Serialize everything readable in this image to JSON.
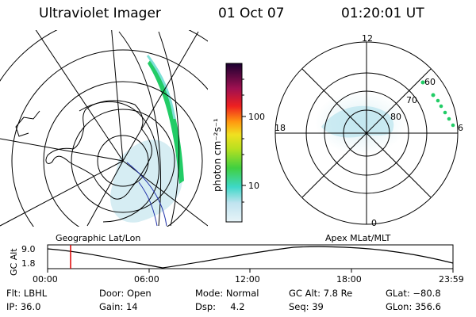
{
  "header": {
    "instrument": "Ultraviolet Imager",
    "date": "01 Oct 07",
    "time": "01:20:01 UT"
  },
  "colorbar": {
    "unit_label": "photon cm⁻²s⁻¹",
    "ticks": [
      "100",
      "10"
    ]
  },
  "geo_panel": {
    "label": "Geographic Lat/Lon"
  },
  "polar_panel": {
    "label": "Apex  MLat/MLT",
    "mlt_labels": {
      "top": "12",
      "left": "18",
      "right": "6",
      "bottom": "0"
    },
    "lat_labels": [
      "60",
      "70",
      "80"
    ]
  },
  "altitude_plot": {
    "axis_title": "GC Alt",
    "y_ticks": [
      "9.0",
      "1.8"
    ],
    "x_ticks": [
      "00:00",
      "06:00",
      "12:00",
      "18:00",
      "23:59"
    ]
  },
  "status": {
    "row1": {
      "flt": "Flt: LBHL",
      "door": "Door: Open",
      "mode": "Mode: Normal",
      "gcalt": "GC Alt: 7.8 Re",
      "glat": "GLat: −80.8"
    },
    "row2": {
      "ip": "IP: 36.0",
      "gain": "Gain: 14",
      "dsp": "Dsp:     4.2",
      "seq": "Seq: 39",
      "glon": "GLon: 356.6"
    }
  },
  "colors": {
    "background": "#ffffff",
    "foreground": "#000000",
    "aurora_low": "#bfe9ee",
    "aurora_high": "#22cc66",
    "marker": "#dd0000",
    "blue_line": "#2233aa"
  }
}
